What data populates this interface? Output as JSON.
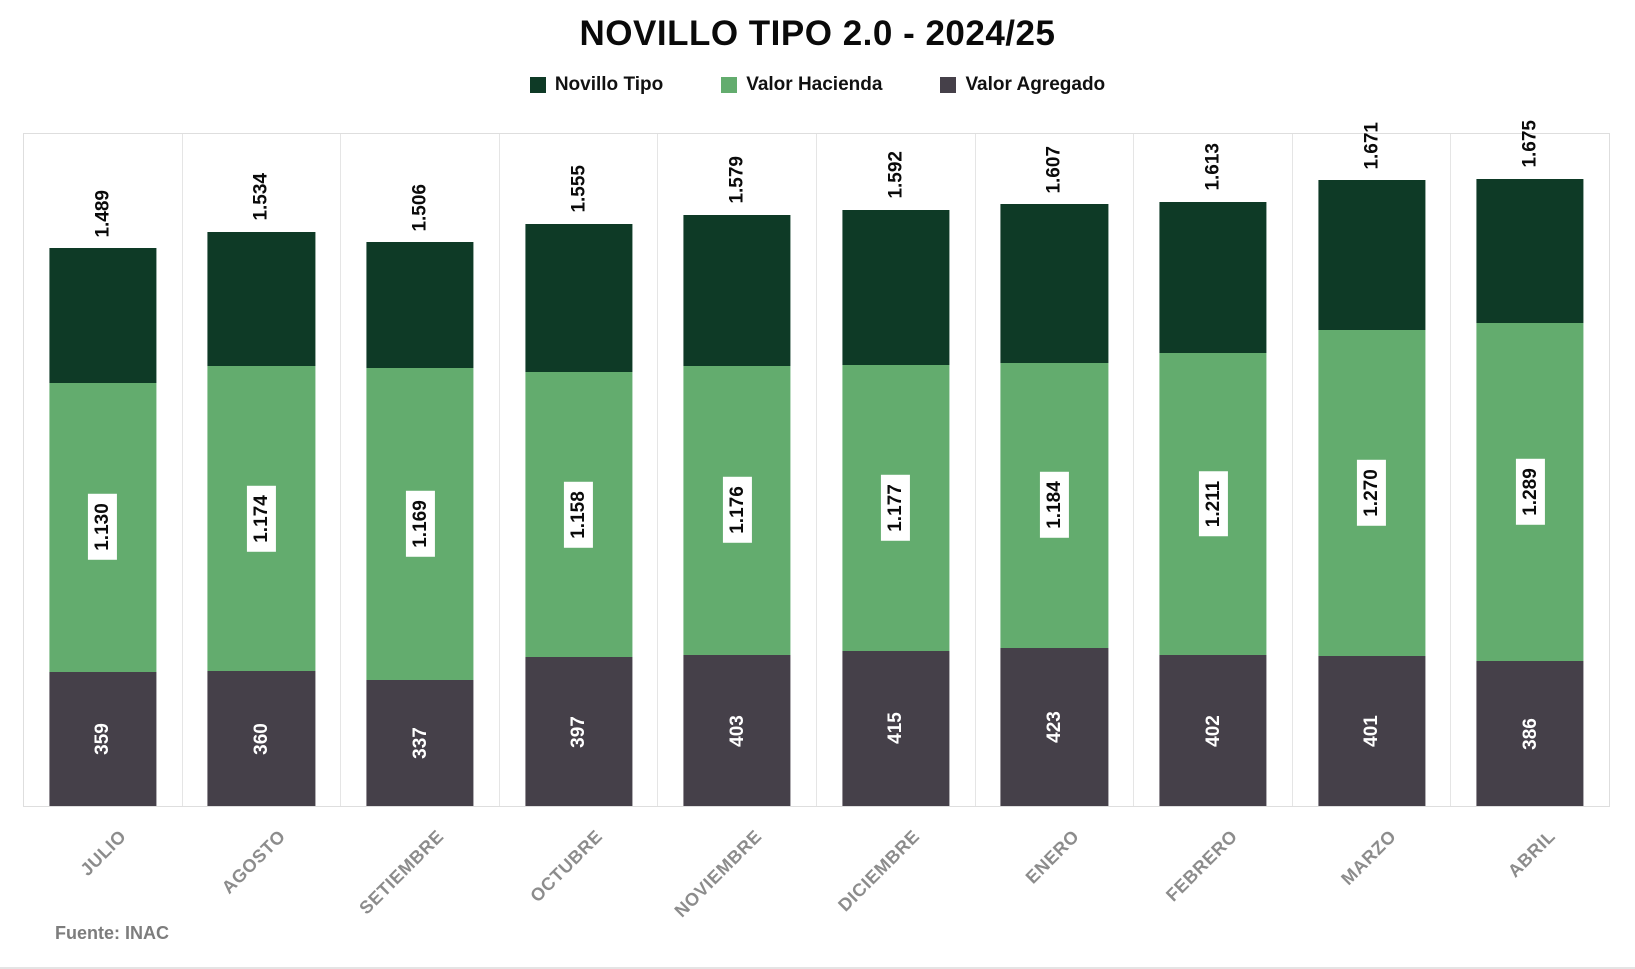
{
  "title": "NOVILLO TIPO 2.0 - 2024/25",
  "source": "Fuente: INAC",
  "colors": {
    "novillo_tipo": "#0e3a26",
    "valor_hacienda": "#63ac6e",
    "valor_agregado": "#454049",
    "grid": "#e5e5e5",
    "month_label": "#8c8c8c"
  },
  "chart_data": {
    "type": "bar",
    "stacked": true,
    "title": "NOVILLO TIPO 2.0 - 2024/25",
    "xlabel": "",
    "ylabel": "",
    "ylim": [
      0,
      1800
    ],
    "legend_position": "top",
    "grid": "vertical category separators, light gray",
    "categories": [
      "JULIO",
      "AGOSTO",
      "SETIEMBRE",
      "OCTUBRE",
      "NOVIEMBRE",
      "DICIEMBRE",
      "ENERO",
      "FEBRERO",
      "MARZO",
      "ABRIL"
    ],
    "series": [
      {
        "name": "Novillo Tipo",
        "role": "total (bar top = this value; top segment spans from Valor Hacienda level to this total)",
        "color": "#0e3a26",
        "values": [
          1489,
          1534,
          1506,
          1555,
          1579,
          1592,
          1607,
          1613,
          1671,
          1675
        ],
        "labels": [
          "1.489",
          "1.534",
          "1.506",
          "1.555",
          "1.579",
          "1.592",
          "1.607",
          "1.613",
          "1.671",
          "1.675"
        ]
      },
      {
        "name": "Valor Hacienda",
        "role": "cumulative level of green segment top (green segment spans from Valor Agregado level to this value)",
        "color": "#63ac6e",
        "values": [
          1130,
          1174,
          1169,
          1158,
          1176,
          1177,
          1184,
          1211,
          1270,
          1289
        ],
        "labels": [
          "1.130",
          "1.174",
          "1.169",
          "1.158",
          "1.176",
          "1.177",
          "1.184",
          "1.211",
          "1.270",
          "1.289"
        ]
      },
      {
        "name": "Valor Agregado",
        "role": "bottom gray segment (0 to this value)",
        "color": "#454049",
        "values": [
          359,
          360,
          337,
          397,
          403,
          415,
          423,
          402,
          401,
          386
        ],
        "labels": [
          "359",
          "360",
          "337",
          "397",
          "403",
          "415",
          "423",
          "402",
          "401",
          "386"
        ]
      }
    ]
  }
}
